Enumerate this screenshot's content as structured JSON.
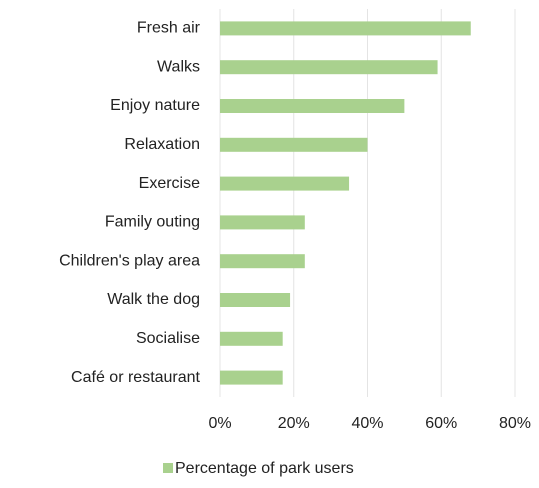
{
  "chart_data": {
    "type": "barh",
    "categories": [
      "Fresh air",
      "Walks",
      "Enjoy nature",
      "Relaxation",
      "Exercise",
      "Family outing",
      "Children's play area",
      "Walk the dog",
      "Socialise",
      "Café or restaurant"
    ],
    "series": [
      {
        "name": "Percentage of park users",
        "color": "#a9d18e",
        "values": [
          68,
          59,
          50,
          40,
          35,
          23,
          23,
          19,
          17,
          17
        ]
      }
    ],
    "xlim": [
      0,
      80
    ],
    "xticks": [
      {
        "value": 0,
        "label": "0%"
      },
      {
        "value": 20,
        "label": "20%"
      },
      {
        "value": 40,
        "label": "40%"
      },
      {
        "value": 60,
        "label": "60%"
      },
      {
        "value": 80,
        "label": "80%"
      }
    ],
    "grid": true,
    "legend": "bottom"
  }
}
